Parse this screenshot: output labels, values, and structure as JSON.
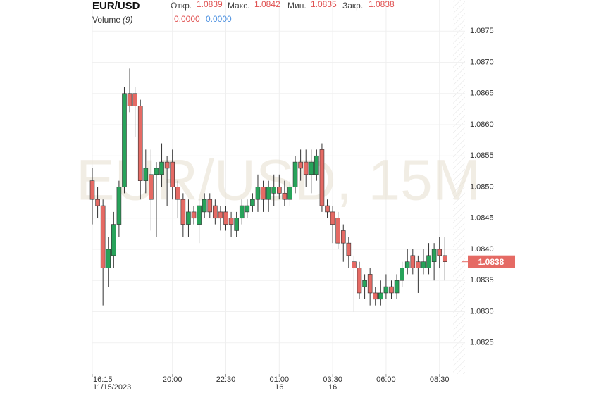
{
  "chart_data": {
    "type": "candlestick",
    "title": "EUR/USD",
    "watermark": "EUR/USD, 15M",
    "ohlc_header": [
      {
        "label": "Откр.",
        "value": 1.0839
      },
      {
        "label": "Макс.",
        "value": 1.0842
      },
      {
        "label": "Мин.",
        "value": 1.0835
      },
      {
        "label": "Закр.",
        "value": 1.0838
      }
    ],
    "volume": {
      "name": "Volume",
      "period": "(9)",
      "values": [
        0,
        0
      ],
      "value_labels": [
        "0.0000",
        "0.0000"
      ],
      "colors": [
        "#e05252",
        "#4a8fe0"
      ]
    },
    "header_value_color": "#e05252",
    "up_color": "#27a35a",
    "down_color": "#e56a64",
    "grid": true,
    "ylim": [
      1.082,
      1.088
    ],
    "yticks": [
      1.0825,
      {
        "value": 1.083,
        "label": "1.0830"
      },
      1.0835,
      {
        "value": 1.084,
        "label": "1.0840"
      },
      1.0845,
      {
        "value": 1.085,
        "label": "1.0850"
      },
      1.0855,
      {
        "value": 1.086,
        "label": "1.0860"
      },
      1.0865,
      {
        "value": 1.087,
        "label": "1.0870"
      },
      1.0875
    ],
    "categories": [
      "16:15",
      null,
      null,
      null,
      null,
      null,
      null,
      null,
      null,
      null,
      null,
      null,
      null,
      null,
      null,
      "20:00",
      null,
      null,
      null,
      null,
      null,
      null,
      null,
      null,
      null,
      "22:30",
      null,
      null,
      null,
      null,
      null,
      null,
      null,
      null,
      null,
      "01:00",
      null,
      null,
      null,
      null,
      null,
      null,
      null,
      null,
      null,
      "03:30",
      null,
      null,
      null,
      null,
      null,
      null,
      null,
      null,
      null,
      "06:00",
      null,
      null,
      null,
      null,
      null,
      null,
      null,
      null,
      null,
      "08:30",
      null
    ],
    "dates": [
      "11/15/2023",
      null,
      null,
      null,
      null,
      null,
      null,
      null,
      null,
      null,
      null,
      null,
      null,
      null,
      null,
      null,
      null,
      null,
      null,
      null,
      null,
      null,
      null,
      null,
      null,
      null,
      null,
      null,
      null,
      null,
      null,
      null,
      null,
      null,
      null,
      "16",
      null,
      null,
      null,
      null,
      null,
      null,
      null,
      null,
      null,
      "16",
      null,
      null,
      null,
      null,
      null,
      null,
      null,
      null,
      null,
      null,
      null,
      null,
      null,
      null,
      null,
      null,
      null,
      null,
      null,
      null,
      null
    ],
    "open": [
      1.0851,
      1.0848,
      1.0847,
      1.0837,
      1.0839,
      1.0844,
      1.085,
      1.0865,
      1.0865,
      1.0863,
      1.0851,
      1.0852,
      1.0852,
      1.0852,
      1.0854,
      1.0854,
      1.085,
      1.0848,
      1.0844,
      1.0846,
      1.0844,
      1.0846,
      1.0848,
      1.0847,
      1.0846,
      1.0846,
      1.0845,
      1.0843,
      1.0845,
      1.0846,
      1.0847,
      1.0848,
      1.085,
      1.0848,
      1.0849,
      1.085,
      1.0849,
      1.0848,
      1.085,
      1.0854,
      1.0854,
      1.0852,
      1.0852,
      1.0856,
      1.0847,
      1.0846,
      1.0845,
      1.0843,
      1.0841,
      1.0838,
      1.0837,
      1.0834,
      1.0836,
      1.0833,
      1.0832,
      1.0833,
      1.0834,
      1.0833,
      1.0835,
      1.0837,
      1.0839,
      1.0838,
      1.0837,
      1.0837,
      1.0838,
      1.084,
      1.0839
    ],
    "high": [
      1.0853,
      1.085,
      1.0848,
      1.0842,
      1.0846,
      1.0851,
      1.0866,
      1.0869,
      1.0866,
      1.0864,
      1.0856,
      1.0856,
      1.0854,
      1.0857,
      1.0855,
      1.0856,
      1.0851,
      1.0849,
      1.0848,
      1.0847,
      1.0848,
      1.0849,
      1.0849,
      1.0848,
      1.0847,
      1.0847,
      1.0846,
      1.0846,
      1.0848,
      1.0848,
      1.0849,
      1.0852,
      1.0851,
      1.0851,
      1.0852,
      1.0852,
      1.0851,
      1.0851,
      1.0855,
      1.0856,
      1.0856,
      1.0856,
      1.0856,
      1.0857,
      1.0848,
      1.0847,
      1.0846,
      1.0844,
      1.0842,
      1.0839,
      1.0838,
      1.0836,
      1.0837,
      1.0834,
      1.0835,
      1.0836,
      1.0835,
      1.0836,
      1.0838,
      1.084,
      1.084,
      1.0839,
      1.084,
      1.0841,
      1.0841,
      1.0842,
      1.0842
    ],
    "low": [
      1.0844,
      1.0845,
      1.0831,
      1.0834,
      1.0837,
      1.0842,
      1.0849,
      1.0862,
      1.0858,
      1.0848,
      1.0849,
      1.0843,
      1.0842,
      1.085,
      1.0847,
      1.0848,
      1.0845,
      1.0842,
      1.0842,
      1.0844,
      1.0841,
      1.0845,
      1.0845,
      1.0844,
      1.0843,
      1.0843,
      1.0842,
      1.0842,
      1.0844,
      1.0845,
      1.0846,
      1.0846,
      1.0846,
      1.0846,
      1.0847,
      1.0848,
      1.0847,
      1.0847,
      1.0849,
      1.0851,
      1.085,
      1.0849,
      1.0851,
      1.0846,
      1.0845,
      1.0841,
      1.084,
      1.0838,
      1.0837,
      1.083,
      1.0832,
      1.0832,
      1.0831,
      1.0831,
      1.0831,
      1.0832,
      1.0832,
      1.0832,
      1.0834,
      1.0836,
      1.0836,
      1.0833,
      1.0836,
      1.0836,
      1.0835,
      1.0837,
      1.0835
    ],
    "close": [
      1.0848,
      1.0847,
      1.0837,
      1.084,
      1.0844,
      1.085,
      1.0865,
      1.0863,
      1.0863,
      1.0851,
      1.0853,
      1.0848,
      1.0853,
      1.0854,
      1.0853,
      1.085,
      1.0848,
      1.0844,
      1.0846,
      1.0845,
      1.0847,
      1.0848,
      1.0846,
      1.0845,
      1.0845,
      1.0844,
      1.0844,
      1.0845,
      1.0847,
      1.0847,
      1.0848,
      1.085,
      1.0848,
      1.085,
      1.085,
      1.0849,
      1.0848,
      1.085,
      1.0854,
      1.0853,
      1.0852,
      1.0854,
      1.0855,
      1.0847,
      1.0846,
      1.0844,
      1.0841,
      1.0841,
      1.0839,
      1.0837,
      1.0833,
      1.0835,
      1.0833,
      1.0832,
      1.0833,
      1.0834,
      1.0833,
      1.0835,
      1.0837,
      1.0838,
      1.0837,
      1.0837,
      1.0838,
      1.0839,
      1.084,
      1.0839,
      1.0838
    ]
  }
}
